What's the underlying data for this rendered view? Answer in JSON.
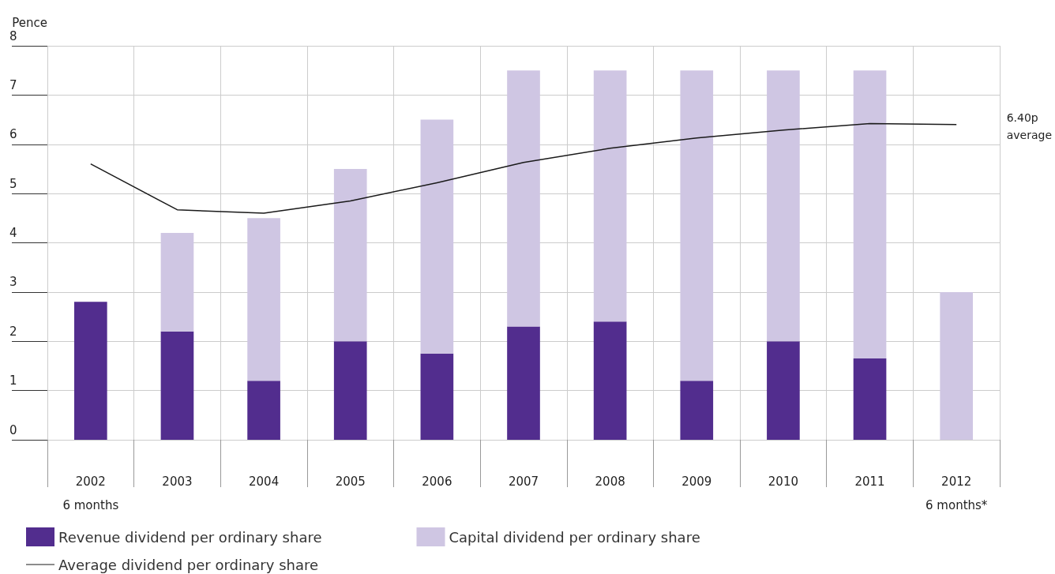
{
  "chart_data": {
    "type": "bar",
    "stacked": true,
    "ylabel": "Pence",
    "categories": [
      "2002\n6 months",
      "2003",
      "2004",
      "2005",
      "2006",
      "2007",
      "2008",
      "2009",
      "2010",
      "2011",
      "2012\n6 months*"
    ],
    "series": [
      {
        "name": "Revenue dividend per ordinary share",
        "color": "#522d8e",
        "values": [
          2.8,
          2.2,
          1.2,
          2.0,
          1.75,
          2.3,
          2.4,
          1.2,
          2.0,
          1.65,
          null
        ]
      },
      {
        "name": "Capital dividend per ordinary share",
        "color": "#cfc6e3",
        "values": [
          null,
          2.0,
          3.3,
          3.5,
          4.75,
          5.2,
          5.1,
          6.3,
          5.5,
          5.85,
          3.0
        ]
      },
      {
        "name": "Average dividend per ordinary share",
        "type": "line",
        "color": "#1a1a1a",
        "values": [
          5.6,
          4.67,
          4.6,
          4.85,
          5.22,
          5.63,
          5.92,
          6.13,
          6.29,
          6.42,
          6.4
        ]
      }
    ],
    "ylim": [
      0,
      8
    ],
    "yticks": [
      0,
      1,
      2,
      3,
      4,
      5,
      6,
      7,
      8
    ],
    "grid": true,
    "legend": "bottom",
    "marker": "none",
    "line_style": "solid",
    "annotations": [
      "6.40p\naverage"
    ]
  }
}
